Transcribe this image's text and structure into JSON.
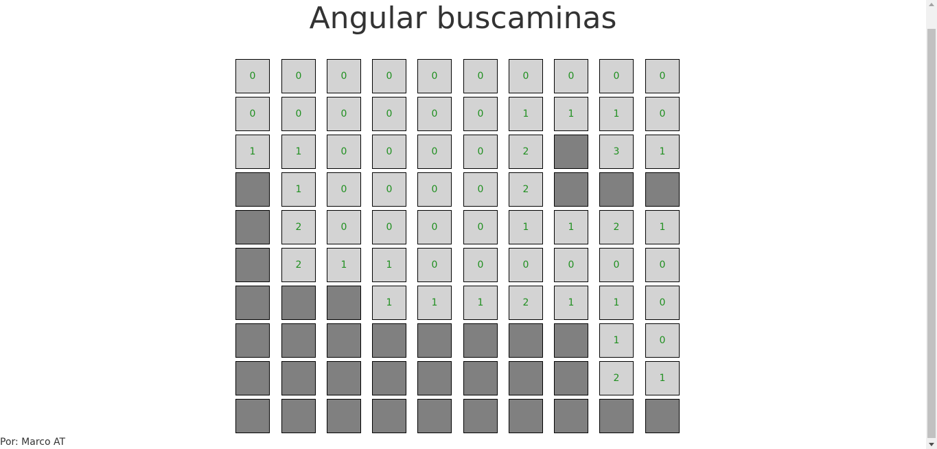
{
  "title": "Angular buscaminas",
  "footer": "Por: Marco AT",
  "colors": {
    "revealed": "#d3d3d3",
    "hidden": "#808080",
    "number": "#1f8f1f"
  },
  "board": [
    [
      "0",
      "0",
      "0",
      "0",
      "0",
      "0",
      "0",
      "0",
      "0",
      "0"
    ],
    [
      "0",
      "0",
      "0",
      "0",
      "0",
      "0",
      "1",
      "1",
      "1",
      "0"
    ],
    [
      "1",
      "1",
      "0",
      "0",
      "0",
      "0",
      "2",
      null,
      "3",
      "1"
    ],
    [
      null,
      "1",
      "0",
      "0",
      "0",
      "0",
      "2",
      null,
      null,
      null
    ],
    [
      null,
      "2",
      "0",
      "0",
      "0",
      "0",
      "1",
      "1",
      "2",
      "1"
    ],
    [
      null,
      "2",
      "1",
      "1",
      "0",
      "0",
      "0",
      "0",
      "0",
      "0"
    ],
    [
      null,
      null,
      null,
      "1",
      "1",
      "1",
      "2",
      "1",
      "1",
      "0"
    ],
    [
      null,
      null,
      null,
      null,
      null,
      null,
      null,
      null,
      "1",
      "0"
    ],
    [
      null,
      null,
      null,
      null,
      null,
      null,
      null,
      null,
      "2",
      "1"
    ],
    [
      null,
      null,
      null,
      null,
      null,
      null,
      null,
      null,
      null,
      null
    ]
  ]
}
